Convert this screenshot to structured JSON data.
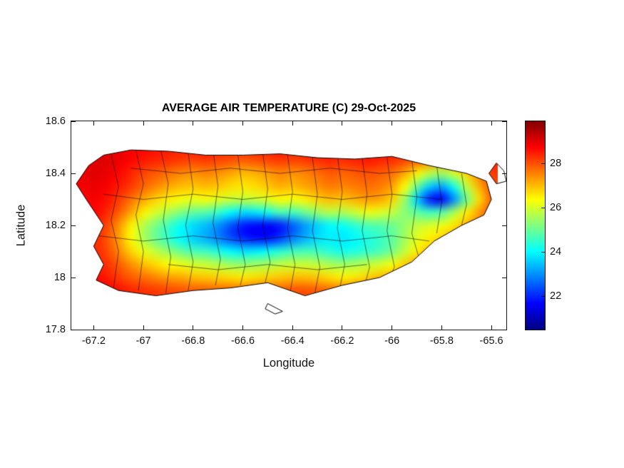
{
  "chart_data": {
    "type": "heatmap",
    "title": "AVERAGE AIR TEMPERATURE (C) 29-Oct-2025",
    "xlabel": "Longitude",
    "ylabel": "Latitude",
    "xlim": [
      -67.29,
      -65.54
    ],
    "ylim": [
      17.8,
      18.6
    ],
    "x_ticks": [
      -67.2,
      -67,
      -66.8,
      -66.6,
      -66.4,
      -66.2,
      -66,
      -65.8,
      -65.6
    ],
    "x_tick_labels": [
      "-67.2",
      "-67",
      "-66.8",
      "-66.6",
      "-66.4",
      "-66.2",
      "-66",
      "-65.8",
      "-65.6"
    ],
    "y_ticks": [
      17.8,
      18,
      18.2,
      18.4,
      18.6
    ],
    "y_tick_labels": [
      "17.8",
      "18",
      "18.2",
      "18.4",
      "18.6"
    ],
    "colormap": "jet",
    "grid_on": false,
    "colorbar": {
      "min": 20.5,
      "max": 29.9,
      "ticks": [
        22,
        24,
        26,
        28
      ],
      "tick_labels": [
        "22",
        "24",
        "26",
        "28"
      ]
    },
    "grid": {
      "lon_start": -67.25,
      "lon_step": 0.05,
      "ncols": 34,
      "lat_start": 18.5,
      "lat_step": -0.05,
      "nrows": 12,
      "values_c": [
        [
          28.8,
          28.9,
          29.0,
          28.9,
          28.8,
          28.7,
          28.6,
          28.5,
          28.4,
          28.5,
          28.6,
          28.5,
          28.4,
          28.3,
          28.4,
          28.5,
          28.6,
          28.5,
          28.6,
          28.7,
          28.6,
          28.5,
          28.6,
          28.7,
          28.6,
          28.5,
          28.4,
          28.3,
          28.2,
          28.1,
          28.2,
          28.3,
          28.4,
          28.5
        ],
        [
          28.9,
          29.0,
          29.0,
          28.9,
          28.7,
          28.5,
          28.4,
          28.3,
          28.2,
          28.1,
          28.2,
          28.1,
          28.0,
          27.9,
          28.0,
          28.1,
          28.2,
          28.1,
          28.2,
          28.3,
          28.4,
          28.3,
          28.4,
          28.5,
          28.4,
          28.3,
          28.1,
          27.9,
          27.6,
          27.4,
          27.6,
          27.9,
          28.2,
          28.4
        ],
        [
          28.9,
          29.0,
          28.9,
          28.7,
          28.4,
          28.1,
          27.9,
          27.7,
          27.5,
          27.4,
          27.5,
          27.4,
          27.2,
          27.0,
          27.1,
          27.3,
          27.5,
          27.4,
          27.5,
          27.7,
          27.9,
          27.8,
          27.9,
          28.0,
          27.9,
          27.7,
          27.2,
          26.5,
          25.8,
          25.5,
          26.0,
          26.8,
          27.6,
          28.2
        ],
        [
          28.8,
          28.9,
          28.8,
          28.5,
          28.2,
          27.8,
          27.5,
          27.2,
          27.0,
          26.9,
          27.0,
          26.9,
          26.7,
          26.6,
          26.7,
          26.9,
          27.1,
          27.0,
          27.2,
          27.4,
          27.6,
          27.5,
          27.6,
          27.7,
          27.6,
          27.3,
          26.4,
          25.0,
          23.6,
          23.2,
          24.2,
          25.8,
          27.1,
          28.0
        ],
        [
          28.7,
          28.8,
          28.6,
          28.2,
          27.7,
          27.2,
          26.8,
          26.5,
          26.3,
          26.2,
          26.3,
          26.1,
          25.9,
          25.8,
          25.9,
          26.1,
          26.4,
          26.3,
          26.5,
          26.8,
          27.0,
          26.9,
          27.1,
          27.3,
          27.2,
          26.8,
          25.5,
          23.6,
          22.0,
          21.6,
          23.0,
          25.0,
          26.7,
          27.8
        ],
        [
          28.6,
          28.7,
          28.4,
          27.9,
          27.2,
          26.5,
          26.0,
          25.6,
          25.2,
          24.9,
          24.8,
          24.5,
          24.0,
          23.7,
          23.8,
          24.2,
          24.7,
          24.6,
          25.0,
          25.4,
          25.7,
          25.6,
          25.9,
          26.2,
          26.1,
          25.8,
          25.3,
          24.9,
          24.6,
          24.8,
          25.6,
          26.5,
          27.3,
          28.0
        ],
        [
          28.5,
          28.5,
          28.1,
          27.4,
          26.5,
          25.7,
          25.1,
          24.6,
          24.1,
          23.7,
          23.4,
          23.0,
          22.4,
          21.9,
          21.7,
          21.6,
          21.9,
          22.5,
          23.1,
          23.6,
          24.0,
          24.1,
          24.4,
          24.7,
          24.8,
          25.0,
          25.4,
          25.8,
          26.0,
          26.2,
          26.6,
          27.1,
          27.6,
          28.1
        ],
        [
          28.4,
          28.4,
          28.0,
          27.3,
          26.4,
          25.6,
          25.0,
          24.5,
          24.0,
          23.6,
          23.3,
          22.9,
          22.4,
          22.0,
          21.8,
          21.8,
          22.2,
          22.8,
          23.3,
          23.7,
          23.9,
          23.8,
          24.0,
          24.3,
          24.5,
          24.9,
          25.5,
          26.1,
          26.5,
          26.8,
          27.2,
          27.6,
          28.0,
          28.3
        ],
        [
          28.5,
          28.4,
          28.1,
          27.5,
          26.8,
          26.2,
          25.8,
          25.4,
          25.0,
          24.7,
          24.6,
          24.3,
          24.0,
          23.8,
          23.9,
          24.1,
          24.4,
          24.6,
          24.7,
          24.6,
          24.4,
          24.2,
          24.3,
          24.5,
          24.7,
          25.1,
          25.8,
          26.5,
          27.0,
          27.4,
          27.7,
          28.0,
          28.2,
          28.4
        ],
        [
          28.6,
          28.5,
          28.3,
          27.9,
          27.4,
          27.0,
          26.7,
          26.4,
          26.2,
          26.0,
          25.9,
          25.7,
          25.5,
          25.4,
          25.5,
          25.6,
          25.8,
          25.9,
          25.9,
          25.8,
          25.6,
          25.5,
          25.6,
          25.8,
          26.0,
          26.3,
          26.8,
          27.3,
          27.7,
          28.0,
          28.2,
          28.4,
          28.5,
          28.6
        ],
        [
          28.8,
          28.7,
          28.5,
          28.2,
          27.9,
          27.7,
          27.5,
          27.3,
          27.2,
          27.0,
          26.9,
          26.8,
          26.7,
          26.6,
          26.7,
          26.8,
          26.9,
          27.0,
          27.0,
          26.9,
          26.7,
          26.5,
          26.6,
          26.8,
          27.0,
          27.2,
          27.5,
          27.8,
          28.0,
          28.2,
          28.4,
          28.5,
          28.6,
          28.7
        ],
        [
          29.0,
          28.9,
          28.8,
          28.6,
          28.4,
          28.3,
          28.2,
          28.1,
          28.0,
          27.9,
          27.9,
          27.8,
          27.8,
          27.7,
          27.8,
          27.9,
          27.9,
          28.0,
          28.0,
          27.9,
          27.8,
          27.7,
          27.8,
          27.9,
          28.0,
          28.1,
          28.3,
          28.5,
          28.6,
          28.7,
          28.8,
          28.9,
          28.9,
          29.0
        ]
      ]
    },
    "island_outline": [
      [
        -67.16,
        18.47
      ],
      [
        -67.05,
        18.49
      ],
      [
        -66.9,
        18.485
      ],
      [
        -66.75,
        18.47
      ],
      [
        -66.6,
        18.47
      ],
      [
        -66.45,
        18.475
      ],
      [
        -66.3,
        18.46
      ],
      [
        -66.15,
        18.455
      ],
      [
        -66.0,
        18.465
      ],
      [
        -65.85,
        18.43
      ],
      [
        -65.7,
        18.4
      ],
      [
        -65.62,
        18.37
      ],
      [
        -65.6,
        18.3
      ],
      [
        -65.63,
        18.24
      ],
      [
        -65.72,
        18.2
      ],
      [
        -65.83,
        18.14
      ],
      [
        -65.92,
        18.06
      ],
      [
        -66.05,
        18.0
      ],
      [
        -66.2,
        17.97
      ],
      [
        -66.35,
        17.93
      ],
      [
        -66.5,
        17.98
      ],
      [
        -66.65,
        17.96
      ],
      [
        -66.8,
        17.95
      ],
      [
        -66.95,
        17.93
      ],
      [
        -67.1,
        17.95
      ],
      [
        -67.19,
        17.99
      ],
      [
        -67.16,
        18.05
      ],
      [
        -67.2,
        18.12
      ],
      [
        -67.16,
        18.2
      ],
      [
        -67.23,
        18.3
      ],
      [
        -67.27,
        18.36
      ],
      [
        -67.22,
        18.43
      ]
    ],
    "islets": [
      [
        [
          -65.58,
          18.44
        ],
        [
          -65.55,
          18.41
        ],
        [
          -65.54,
          18.37
        ],
        [
          -65.58,
          18.36
        ],
        [
          -65.61,
          18.4
        ]
      ],
      [
        [
          -66.5,
          17.9
        ],
        [
          -66.47,
          17.885
        ],
        [
          -66.44,
          17.87
        ],
        [
          -66.47,
          17.86
        ],
        [
          -66.51,
          17.88
        ]
      ]
    ],
    "boundaries": [
      [
        [
          -67.13,
          18.47
        ],
        [
          -67.1,
          18.35
        ],
        [
          -67.13,
          18.22
        ],
        [
          -67.1,
          18.1
        ],
        [
          -67.12,
          17.96
        ]
      ],
      [
        [
          -67.03,
          18.49
        ],
        [
          -67.0,
          18.36
        ],
        [
          -67.03,
          18.24
        ],
        [
          -67.0,
          18.1
        ],
        [
          -67.02,
          17.95
        ]
      ],
      [
        [
          -66.93,
          18.49
        ],
        [
          -66.9,
          18.36
        ],
        [
          -66.92,
          18.22
        ],
        [
          -66.89,
          18.08
        ],
        [
          -66.91,
          17.94
        ]
      ],
      [
        [
          -66.82,
          18.48
        ],
        [
          -66.8,
          18.34
        ],
        [
          -66.83,
          18.2
        ],
        [
          -66.8,
          18.06
        ],
        [
          -66.82,
          17.95
        ]
      ],
      [
        [
          -66.72,
          18.49
        ],
        [
          -66.7,
          18.35
        ],
        [
          -66.72,
          18.21
        ],
        [
          -66.69,
          18.07
        ],
        [
          -66.71,
          17.97
        ]
      ],
      [
        [
          -66.62,
          18.47
        ],
        [
          -66.6,
          18.33
        ],
        [
          -66.62,
          18.19
        ],
        [
          -66.59,
          18.05
        ],
        [
          -66.61,
          17.97
        ]
      ],
      [
        [
          -66.52,
          18.48
        ],
        [
          -66.5,
          18.34
        ],
        [
          -66.52,
          18.2
        ],
        [
          -66.49,
          18.06
        ],
        [
          -66.51,
          17.98
        ]
      ],
      [
        [
          -66.42,
          18.47
        ],
        [
          -66.4,
          18.33
        ],
        [
          -66.42,
          18.19
        ],
        [
          -66.39,
          18.05
        ],
        [
          -66.41,
          17.94
        ]
      ],
      [
        [
          -66.32,
          18.46
        ],
        [
          -66.3,
          18.32
        ],
        [
          -66.32,
          18.18
        ],
        [
          -66.29,
          18.04
        ],
        [
          -66.31,
          17.94
        ]
      ],
      [
        [
          -66.22,
          18.47
        ],
        [
          -66.2,
          18.33
        ],
        [
          -66.22,
          18.19
        ],
        [
          -66.19,
          18.05
        ],
        [
          -66.21,
          17.96
        ]
      ],
      [
        [
          -66.12,
          18.46
        ],
        [
          -66.1,
          18.32
        ],
        [
          -66.12,
          18.18
        ],
        [
          -66.09,
          18.04
        ],
        [
          -66.11,
          17.97
        ]
      ],
      [
        [
          -66.02,
          18.46
        ],
        [
          -66.0,
          18.32
        ],
        [
          -66.02,
          18.18
        ],
        [
          -65.99,
          18.04
        ],
        [
          -66.01,
          18.0
        ]
      ],
      [
        [
          -65.92,
          18.45
        ],
        [
          -65.9,
          18.31
        ],
        [
          -65.92,
          18.17
        ],
        [
          -65.89,
          18.07
        ]
      ],
      [
        [
          -65.82,
          18.43
        ],
        [
          -65.8,
          18.29
        ],
        [
          -65.82,
          18.17
        ]
      ],
      [
        [
          -65.72,
          18.4
        ],
        [
          -65.7,
          18.28
        ],
        [
          -65.72,
          18.2
        ]
      ],
      [
        [
          -67.16,
          18.32
        ],
        [
          -67.0,
          18.3
        ],
        [
          -66.8,
          18.32
        ],
        [
          -66.6,
          18.3
        ],
        [
          -66.4,
          18.32
        ],
        [
          -66.2,
          18.3
        ],
        [
          -66.0,
          18.32
        ],
        [
          -65.8,
          18.3
        ]
      ],
      [
        [
          -67.18,
          18.16
        ],
        [
          -67.0,
          18.14
        ],
        [
          -66.8,
          18.16
        ],
        [
          -66.6,
          18.14
        ],
        [
          -66.4,
          18.16
        ],
        [
          -66.2,
          18.14
        ],
        [
          -66.0,
          18.16
        ],
        [
          -65.85,
          18.14
        ]
      ],
      [
        [
          -66.9,
          18.05
        ],
        [
          -66.7,
          18.03
        ],
        [
          -66.5,
          18.05
        ],
        [
          -66.3,
          18.03
        ],
        [
          -66.1,
          18.05
        ]
      ],
      [
        [
          -67.05,
          18.42
        ],
        [
          -66.85,
          18.4
        ],
        [
          -66.65,
          18.42
        ],
        [
          -66.45,
          18.4
        ],
        [
          -66.25,
          18.42
        ],
        [
          -66.05,
          18.4
        ],
        [
          -65.9,
          18.41
        ]
      ]
    ]
  }
}
